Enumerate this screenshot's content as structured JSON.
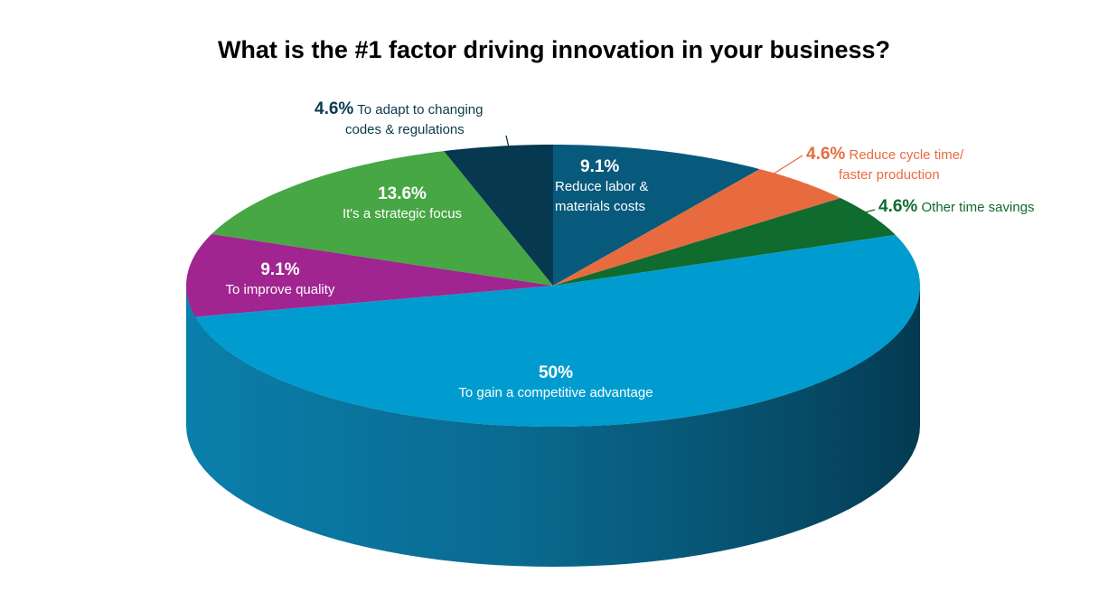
{
  "chart_data": {
    "type": "pie",
    "style": "3d",
    "title": "What is the #1 factor driving innovation in your business?",
    "slices": [
      {
        "pct_label": "9.1%",
        "label": "Reduce labor & materials costs",
        "value": 9.1,
        "color": "#085a7c"
      },
      {
        "pct_label": "4.6%",
        "label": "Reduce cycle time/ faster production",
        "value": 4.6,
        "color": "#e86b3f"
      },
      {
        "pct_label": "4.6%",
        "label": "Other time savings",
        "value": 4.6,
        "color": "#0f6b2e"
      },
      {
        "pct_label": "50%",
        "label": "To gain a competitive advantage",
        "value": 50,
        "color": "#009ccf"
      },
      {
        "pct_label": "9.1%",
        "label": "To improve quality",
        "value": 9.1,
        "color": "#a02590"
      },
      {
        "pct_label": "13.6%",
        "label": "It's a strategic focus",
        "value": 13.6,
        "color": "#46a744"
      },
      {
        "pct_label": "4.6%",
        "label": "To adapt to changing codes & regulations",
        "value": 4.6,
        "color": "#06384f"
      }
    ],
    "start_angle": "12 o'clock",
    "direction": "clockwise",
    "legend": "none"
  }
}
